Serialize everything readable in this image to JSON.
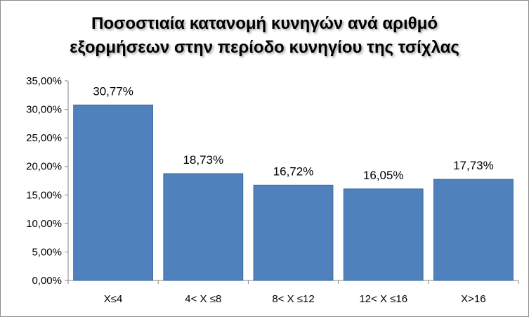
{
  "chart_data": {
    "type": "bar",
    "title_lines": [
      "Ποσοστιαία κατανομή κυνηγών  ανά αριθμό",
      "εξορμήσεων στην περίοδο κυνηγίου της τσίχλας"
    ],
    "categories": [
      "X≤4",
      "4< X ≤8",
      "8< X ≤12",
      "12< X ≤16",
      "X>16"
    ],
    "values": [
      30.77,
      18.73,
      16.72,
      16.05,
      17.73
    ],
    "data_labels": [
      "30,77%",
      "18,73%",
      "16,72%",
      "16,05%",
      "17,73%"
    ],
    "y_ticks": [
      "0,00%",
      "5,00%",
      "10,00%",
      "15,00%",
      "20,00%",
      "25,00%",
      "30,00%",
      "35,00%"
    ],
    "ylim": [
      0,
      35
    ],
    "y_step": 5,
    "xlabel": "",
    "ylabel": "",
    "grid": false,
    "legend": "none",
    "bar_color": "#4f81bd",
    "bar_edge_color": "#3a6a9f",
    "axis_color": "#868686"
  }
}
